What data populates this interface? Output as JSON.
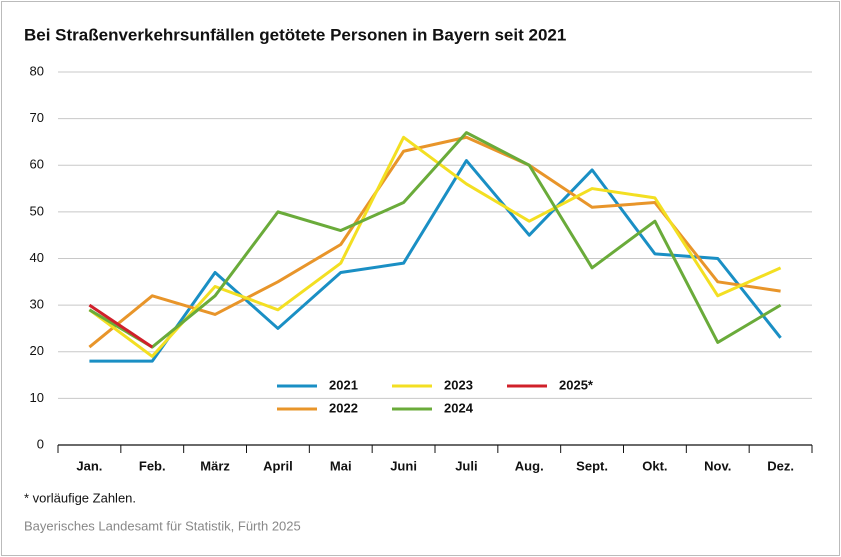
{
  "chart_data": {
    "type": "line",
    "title": "Bei Straßenverkehrsunfällen getötete Personen in Bayern seit 2021",
    "categories": [
      "Jan.",
      "Feb.",
      "März",
      "April",
      "Mai",
      "Juni",
      "Juli",
      "Aug.",
      "Sept.",
      "Okt.",
      "Nov.",
      "Dez."
    ],
    "series": [
      {
        "name": "2021",
        "color": "#1a8fc4",
        "values": [
          18,
          18,
          37,
          25,
          37,
          39,
          61,
          45,
          59,
          41,
          40,
          23
        ]
      },
      {
        "name": "2022",
        "color": "#e8952a",
        "values": [
          21,
          32,
          28,
          35,
          43,
          63,
          66,
          60,
          51,
          52,
          35,
          33
        ]
      },
      {
        "name": "2023",
        "color": "#f3df22",
        "values": [
          29,
          19,
          34,
          29,
          39,
          66,
          56,
          48,
          55,
          53,
          32,
          38
        ]
      },
      {
        "name": "2024",
        "color": "#6aab3a",
        "values": [
          29,
          21,
          32,
          50,
          46,
          52,
          67,
          60,
          38,
          48,
          22,
          30
        ]
      },
      {
        "name": "2025*",
        "color": "#d0202a",
        "values": [
          30,
          21,
          null,
          null,
          null,
          null,
          null,
          null,
          null,
          null,
          null,
          null
        ]
      }
    ],
    "ylim": [
      0,
      80
    ],
    "yticks": [
      0,
      10,
      20,
      30,
      40,
      50,
      60,
      70,
      80
    ],
    "grid": true,
    "note": "* vorläufige Zahlen.",
    "source": "Bayerisches Landesamt für Statistik, Fürth 2025"
  }
}
